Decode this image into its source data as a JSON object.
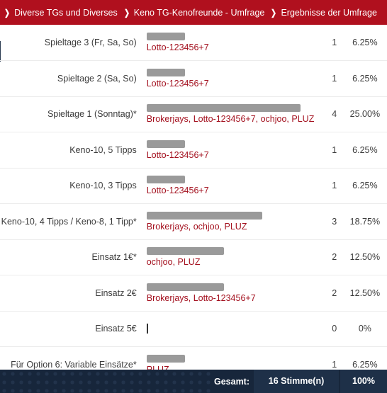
{
  "breadcrumbs": [
    "Diverse TGs und Diverses",
    "Keno TG-Kenofreunde - Umfrage",
    "Ergebnisse der Umfrage"
  ],
  "colors": {
    "header": "#b0101e",
    "voter_text": "#a3101e",
    "bar": "#9a9a9a",
    "footer": "#17263b"
  },
  "rows": [
    {
      "option": "Spieltage 3 (Fr, Sa, So)",
      "voters": "Lotto-123456+7",
      "count": "1",
      "percent": "6.25%",
      "share": 0.25
    },
    {
      "option": "Spieltage 2 (Sa, So)",
      "voters": "Lotto-123456+7",
      "count": "1",
      "percent": "6.25%",
      "share": 0.25
    },
    {
      "option": "Spieltage 1 (Sonntag)*",
      "voters": "Brokerjays, Lotto-123456+7, ochjoo, PLUZ",
      "count": "4",
      "percent": "25.00%",
      "share": 1.0
    },
    {
      "option": "Keno-10, 5 Tipps",
      "voters": "Lotto-123456+7",
      "count": "1",
      "percent": "6.25%",
      "share": 0.25
    },
    {
      "option": "Keno-10, 3 Tipps",
      "voters": "Lotto-123456+7",
      "count": "1",
      "percent": "6.25%",
      "share": 0.25
    },
    {
      "option": "Keno-10, 4 Tipps / Keno-8, 1 Tipp*",
      "voters": "Brokerjays, ochjoo, PLUZ",
      "count": "3",
      "percent": "18.75%",
      "share": 0.75
    },
    {
      "option": "Einsatz 1€*",
      "voters": "ochjoo, PLUZ",
      "count": "2",
      "percent": "12.50%",
      "share": 0.5
    },
    {
      "option": "Einsatz 2€",
      "voters": "Brokerjays, Lotto-123456+7",
      "count": "2",
      "percent": "12.50%",
      "share": 0.5
    },
    {
      "option": "Einsatz 5€",
      "voters": "",
      "count": "0",
      "percent": "0%",
      "share": 0.0
    },
    {
      "option": "Für Option 6: Variable Einsätze*",
      "voters": "PLUZ",
      "count": "1",
      "percent": "6.25%",
      "share": 0.25
    }
  ],
  "footer": {
    "label": "Gesamt:",
    "votes": "16 Stimme(n)",
    "percent": "100%"
  }
}
